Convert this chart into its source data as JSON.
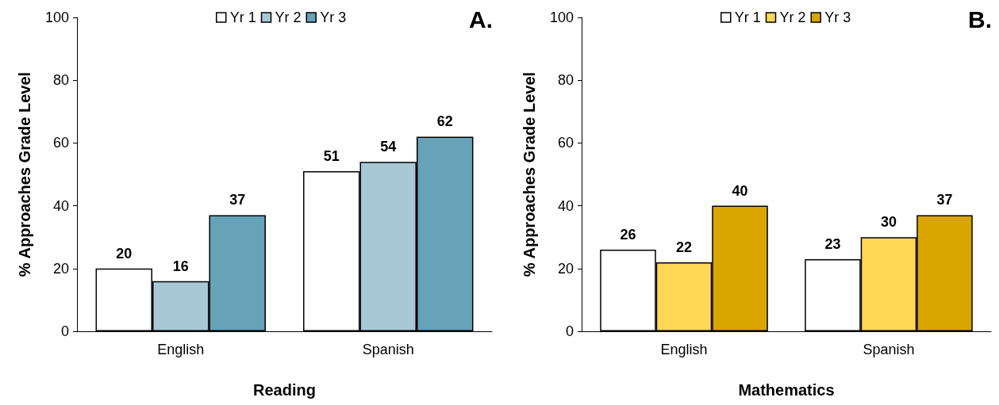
{
  "chart_data": [
    {
      "type": "bar",
      "title": "A.",
      "xlabel": "Reading",
      "ylabel": "% Approaches Grade Level",
      "categories": [
        "English",
        "Spanish"
      ],
      "series": [
        {
          "name": "Yr 1",
          "color": "#ffffff",
          "values": [
            20,
            51
          ]
        },
        {
          "name": "Yr 2",
          "color": "#a8c8d6",
          "values": [
            16,
            54
          ]
        },
        {
          "name": "Yr 3",
          "color": "#66a2b8",
          "values": [
            37,
            62
          ]
        }
      ],
      "ylim": [
        0,
        100
      ],
      "yticks": [
        0,
        20,
        40,
        60,
        80,
        100
      ],
      "grid": false,
      "legend": "top",
      "data_labels": true
    },
    {
      "type": "bar",
      "title": "B.",
      "xlabel": "Mathematics",
      "ylabel": "% Approaches Grade Level",
      "categories": [
        "English",
        "Spanish"
      ],
      "series": [
        {
          "name": "Yr 1",
          "color": "#ffffff",
          "values": [
            26,
            23
          ]
        },
        {
          "name": "Yr 2",
          "color": "#ffd757",
          "values": [
            22,
            30
          ]
        },
        {
          "name": "Yr 3",
          "color": "#d9a600",
          "values": [
            40,
            37
          ]
        }
      ],
      "ylim": [
        0,
        100
      ],
      "yticks": [
        0,
        20,
        40,
        60,
        80,
        100
      ],
      "grid": false,
      "legend": "top",
      "data_labels": true
    }
  ]
}
